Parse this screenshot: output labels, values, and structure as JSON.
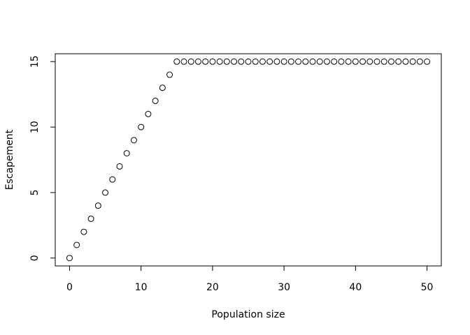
{
  "chart_data": {
    "type": "scatter",
    "title": "",
    "xlabel": "Population size",
    "ylabel": "Escapement",
    "xlim": [
      -2,
      52
    ],
    "ylim": [
      -0.6,
      15.6
    ],
    "x_ticks": [
      0,
      10,
      20,
      30,
      40,
      50
    ],
    "y_ticks": [
      0,
      5,
      10,
      15
    ],
    "grid": false,
    "legend": "none",
    "series": [
      {
        "x": [
          0,
          1,
          2,
          3,
          4,
          5,
          6,
          7,
          8,
          9,
          10,
          11,
          12,
          13,
          14,
          15,
          16,
          17,
          18,
          19,
          20,
          21,
          22,
          23,
          24,
          25,
          26,
          27,
          28,
          29,
          30,
          31,
          32,
          33,
          34,
          35,
          36,
          37,
          38,
          39,
          40,
          41,
          42,
          43,
          44,
          45,
          46,
          47,
          48,
          49,
          50
        ],
        "y": [
          0,
          1,
          2,
          3,
          4,
          5,
          6,
          7,
          8,
          9,
          10,
          11,
          12,
          13,
          14,
          15,
          15,
          15,
          15,
          15,
          15,
          15,
          15,
          15,
          15,
          15,
          15,
          15,
          15,
          15,
          15,
          15,
          15,
          15,
          15,
          15,
          15,
          15,
          15,
          15,
          15,
          15,
          15,
          15,
          15,
          15,
          15,
          15,
          15,
          15,
          15
        ]
      }
    ]
  }
}
